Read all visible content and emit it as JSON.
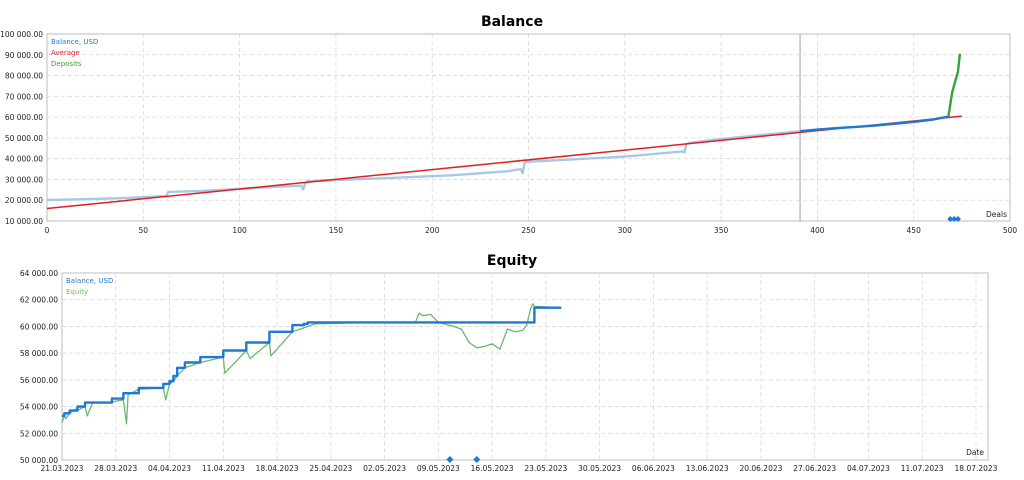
{
  "chart_data": [
    {
      "type": "line",
      "title": "Balance",
      "xlabel": "Deals",
      "ylabel": "",
      "xlim": [
        0,
        500
      ],
      "ylim": [
        10000,
        100000
      ],
      "x_ticks": [
        "0",
        "50",
        "100",
        "150",
        "200",
        "250",
        "300",
        "350",
        "400",
        "450",
        "500"
      ],
      "y_ticks": [
        "10 000.00",
        "20 000.00",
        "30 000.00",
        "40 000.00",
        "50 000.00",
        "60 000.00",
        "70 000.00",
        "80 000.00",
        "90 000.00",
        "100 000.00"
      ],
      "grid": true,
      "legend_position": "top-left",
      "vertical_marker_x": 391,
      "series": [
        {
          "name": "Balance, USD",
          "color": "#1f78d1",
          "x": [
            391,
            400,
            410,
            420,
            430,
            440,
            450,
            460,
            468
          ],
          "y": [
            53200,
            54000,
            54700,
            55300,
            55900,
            56800,
            57700,
            58800,
            60300
          ]
        },
        {
          "name": "Average",
          "color": "#e02020",
          "x": [
            0,
            475
          ],
          "y": [
            16000,
            60500
          ]
        },
        {
          "name": "Deposits",
          "color": "#3aa03a",
          "x": [
            468,
            470,
            473,
            474
          ],
          "y": [
            60300,
            72000,
            82000,
            90500
          ]
        },
        {
          "name": "",
          "color": "#a9c8e6",
          "x": [
            0,
            20,
            40,
            62,
            63,
            80,
            100,
            120,
            132,
            133,
            134,
            135,
            150,
            180,
            210,
            240,
            246,
            247,
            248,
            249,
            270,
            300,
            330,
            331,
            332,
            333,
            350,
            391
          ],
          "y": [
            20100,
            20500,
            21000,
            22000,
            24000,
            24500,
            25500,
            26500,
            27000,
            25200,
            28000,
            29000,
            29700,
            30800,
            32000,
            34000,
            35000,
            33000,
            38000,
            38500,
            39500,
            41000,
            43500,
            43000,
            47000,
            47500,
            49500,
            53200
          ]
        }
      ]
    },
    {
      "type": "line",
      "title": "Equity",
      "xlabel": "Date",
      "ylabel": "",
      "ylim": [
        50000,
        64000
      ],
      "x_ticks": [
        "21.03.2023",
        "28.03.2023",
        "04.04.2023",
        "11.04.2023",
        "18.04.2023",
        "25.04.2023",
        "02.05.2023",
        "09.05.2023",
        "16.05.2023",
        "23.05.2023",
        "30.05.2023",
        "06.06.2023",
        "13.06.2023",
        "20.06.2023",
        "27.06.2023",
        "04.07.2023",
        "11.07.2023",
        "18.07.2023"
      ],
      "y_ticks": [
        "50 000.00",
        "52 000.00",
        "54 000.00",
        "56 000.00",
        "58 000.00",
        "60 000.00",
        "62 000.00",
        "64 000.00"
      ],
      "grid": true,
      "legend_position": "top-left",
      "series": [
        {
          "name": "Balance, USD",
          "color": "#1f78d1",
          "x": [
            0,
            0.3,
            0.3,
            1,
            1,
            2,
            2,
            3,
            3,
            6.5,
            6.5,
            8,
            8,
            10,
            10,
            13.2,
            13.2,
            14,
            14,
            14.5,
            14.5,
            15,
            15,
            16,
            16,
            18,
            18,
            21,
            21,
            24,
            24,
            27,
            27,
            30,
            30,
            31.5,
            31.5,
            32,
            32,
            33,
            33,
            39,
            39,
            60,
            60,
            61.5,
            61.5,
            65
          ],
          "y": [
            53300,
            53300,
            53500,
            53500,
            53700,
            53700,
            54000,
            54000,
            54300,
            54300,
            54600,
            54600,
            55000,
            55000,
            55400,
            55400,
            55700,
            55700,
            55900,
            55900,
            56300,
            56300,
            56900,
            56900,
            57300,
            57300,
            57700,
            57700,
            58200,
            58200,
            58800,
            58800,
            59600,
            59600,
            60100,
            60100,
            60200,
            60200,
            60300,
            60300,
            60300,
            60300,
            60300,
            60300,
            60300,
            60300,
            61400,
            61400
          ]
        },
        {
          "name": "Equity",
          "color": "#6cb86c",
          "x": [
            0,
            0.3,
            0.5,
            1,
            1.8,
            2,
            3,
            3.3,
            4,
            6,
            8,
            8.4,
            8.6,
            9,
            10,
            13.2,
            13.5,
            14,
            14.5,
            15,
            16,
            18,
            21,
            21.2,
            24,
            24.5,
            27,
            27.2,
            30,
            33,
            40,
            42,
            43,
            44,
            46,
            46.5,
            47,
            48,
            49,
            51,
            52,
            53,
            54,
            55,
            56,
            57,
            58,
            59,
            60,
            60.5,
            61,
            61.3,
            61.5,
            65
          ],
          "y": [
            52800,
            53300,
            53100,
            53500,
            53800,
            53700,
            54000,
            53300,
            54300,
            54300,
            54500,
            52700,
            54900,
            55000,
            55300,
            55400,
            54500,
            55700,
            55900,
            56300,
            56900,
            57300,
            57700,
            56500,
            58200,
            57600,
            58800,
            57800,
            59600,
            60200,
            60300,
            60300,
            60300,
            60300,
            60300,
            61000,
            60800,
            60900,
            60300,
            60000,
            59800,
            58800,
            58400,
            58500,
            58700,
            58300,
            59800,
            59600,
            59700,
            60100,
            61300,
            61700,
            61500,
            61400
          ]
        }
      ],
      "markers": [
        {
          "x": 50.5,
          "y": 50000,
          "color": "#1f78d1"
        },
        {
          "x": 54,
          "y": 50000,
          "color": "#1f78d1"
        }
      ]
    }
  ]
}
